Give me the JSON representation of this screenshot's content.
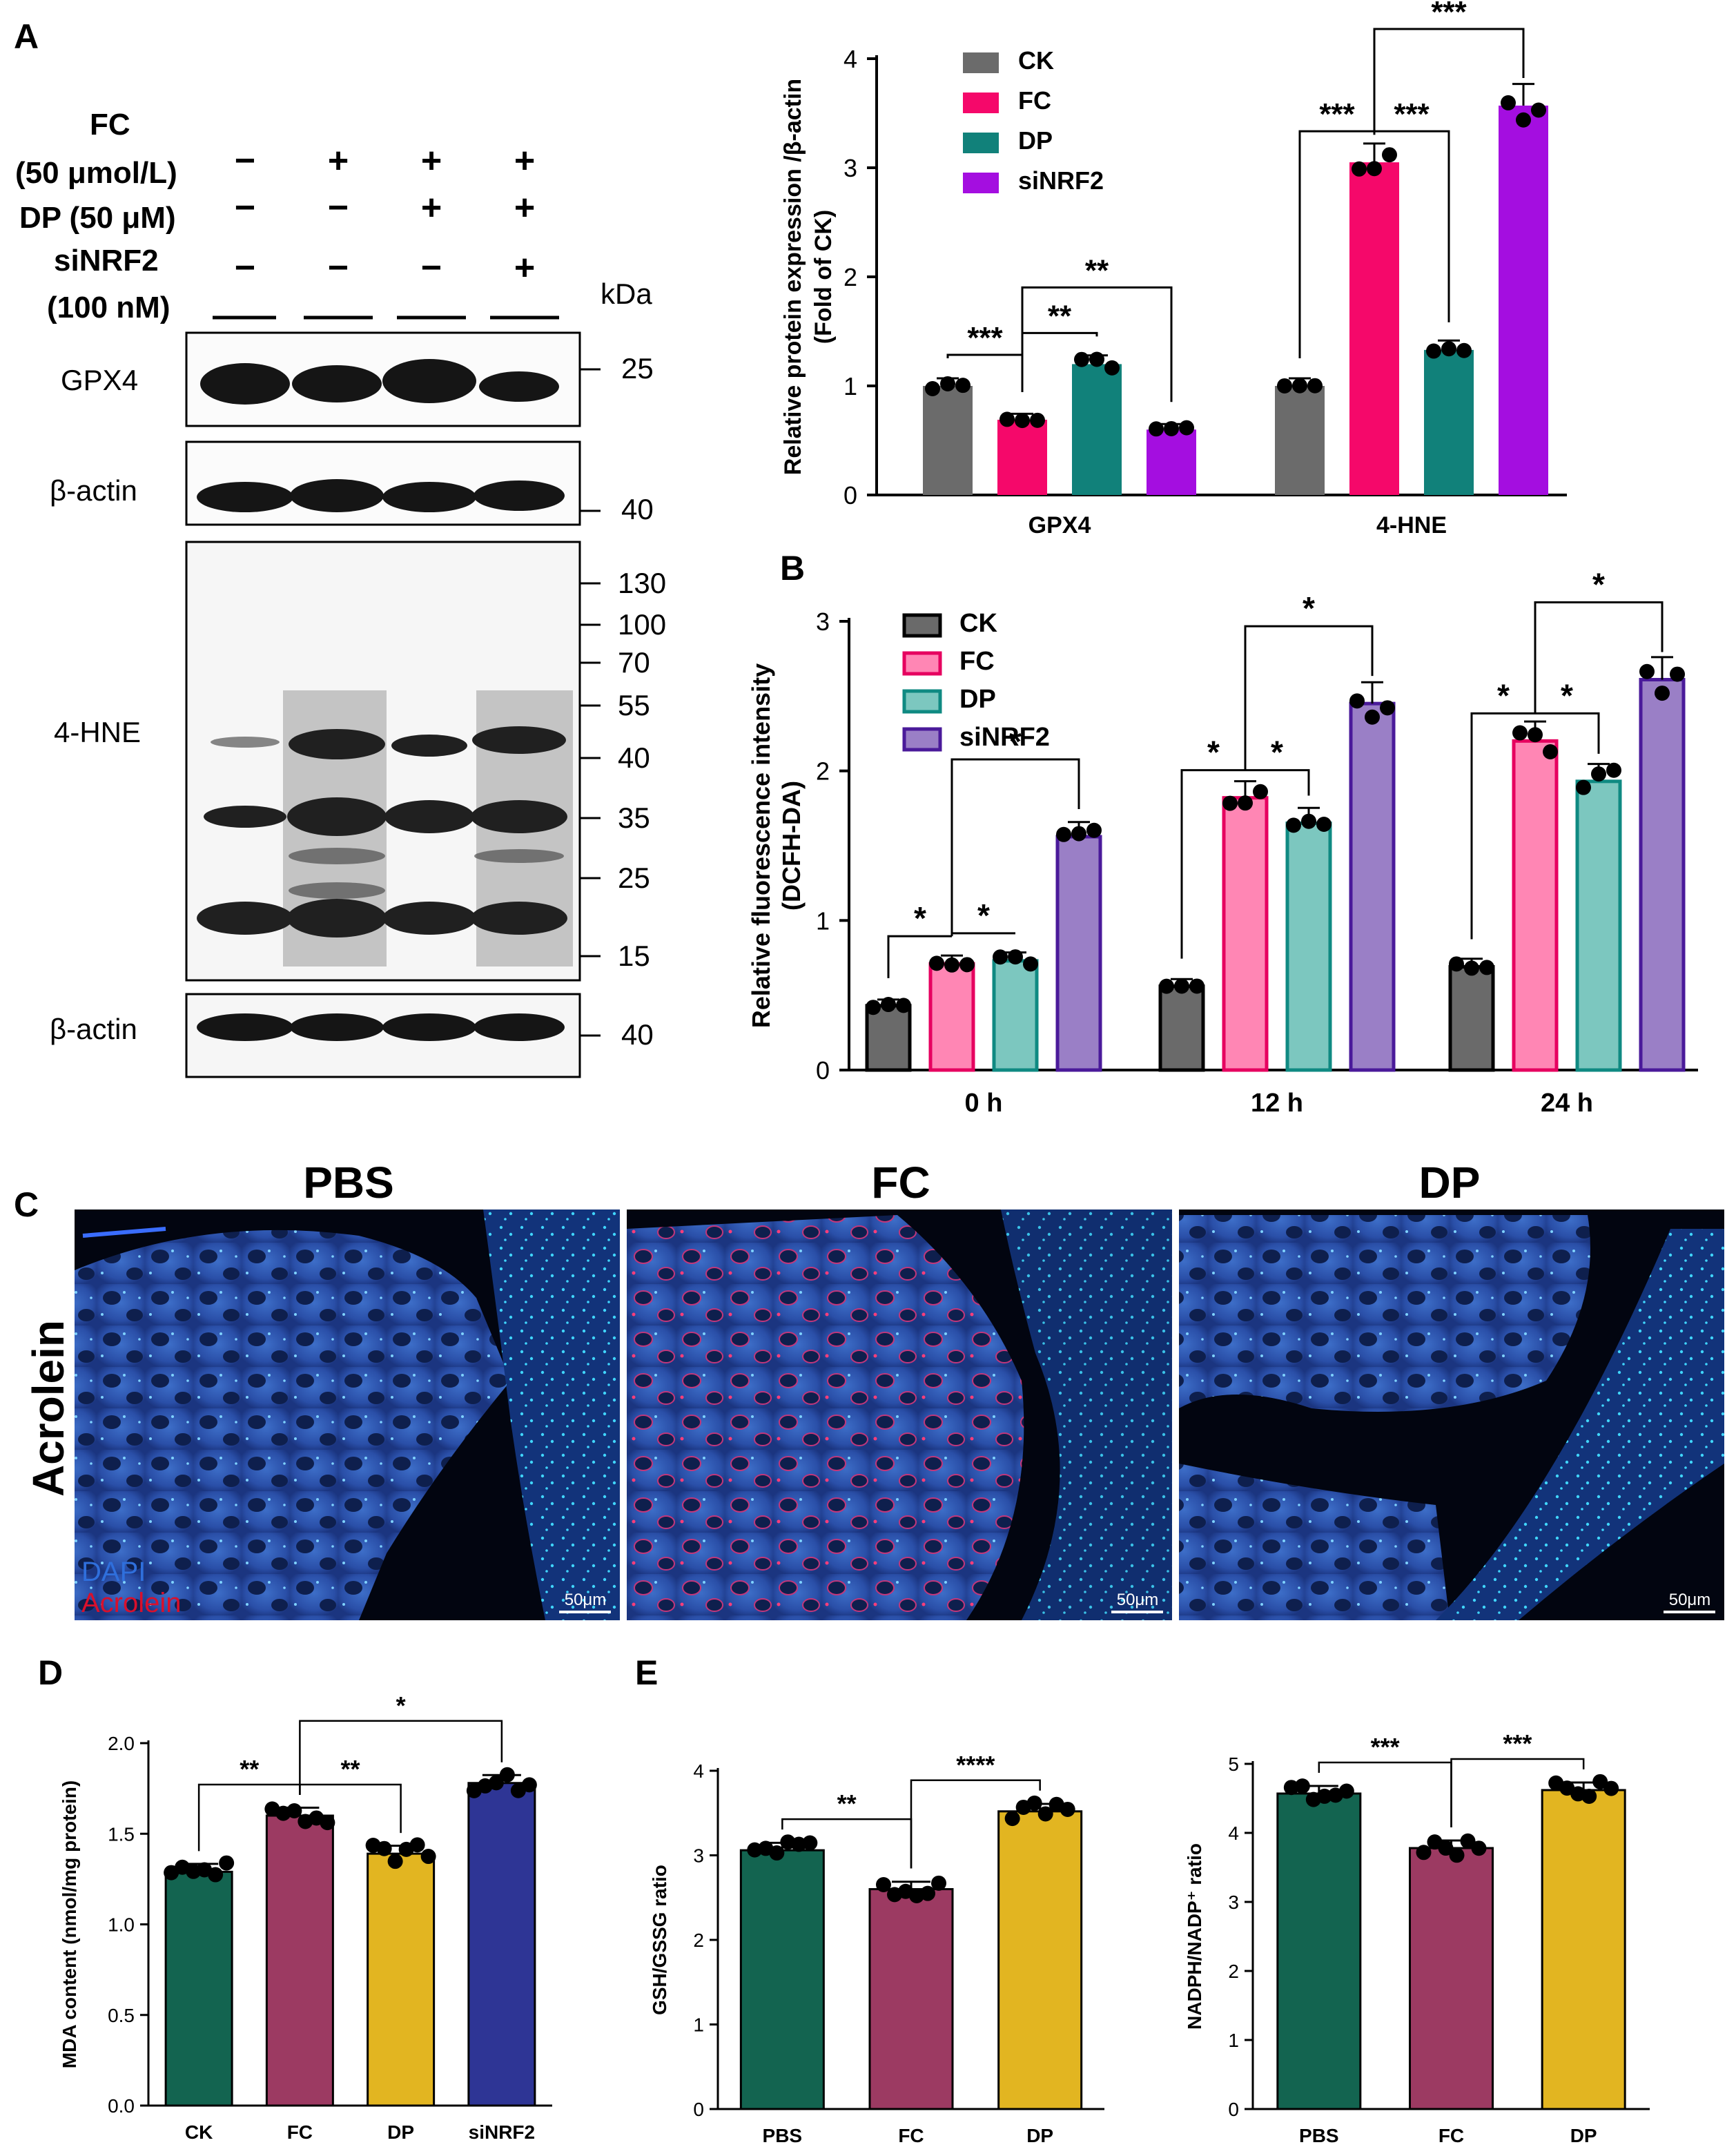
{
  "panels": {
    "A": "A",
    "B": "B",
    "C": "C",
    "D": "D",
    "E": "E"
  },
  "colors": {
    "CK": "#6b6b6b",
    "FC": "#f5086a",
    "DP": "#11817a",
    "siNRF2": "#a40ee0",
    "B_CK_fill": "#6a6a6a",
    "B_FC_fill": "#ff86b4",
    "B_FC_line": "#e6005f",
    "B_DP_fill": "#7cc7bf",
    "B_DP_line": "#0f8a82",
    "B_siNRF2_fill": "#9a7fc6",
    "B_siNRF2_line": "#4a1a9a",
    "D_green": "#136450",
    "D_maroon": "#9c3a62",
    "D_yellow": "#e2b521",
    "D_blue": "#2e3595"
  },
  "western": {
    "treatments": [
      {
        "label": "FC",
        "label2": "(50 μmol/L)",
        "marks": [
          "−",
          "+",
          "+",
          "+"
        ]
      },
      {
        "label": "DP (50 μM)",
        "marks": [
          "−",
          "−",
          "+",
          "+"
        ]
      },
      {
        "label": "siNRF2",
        "label2": "(100 nM)",
        "marks": [
          "−",
          "−",
          "−",
          "+"
        ]
      }
    ],
    "kda_label": "kDa",
    "blots": [
      {
        "name": "GPX4",
        "markers": [
          "25"
        ]
      },
      {
        "name": "β-actin",
        "markers": [
          "40"
        ]
      },
      {
        "name": "4-HNE",
        "markers": [
          "130",
          "100",
          "70",
          "55",
          "40",
          "35",
          "25",
          "15"
        ]
      },
      {
        "name": "β-actin",
        "markers": [
          "40"
        ]
      }
    ]
  },
  "chart_data": [
    {
      "id": "A",
      "type": "bar",
      "ylabel": "Relative protein expression /β-actin",
      "ylabel2": "(Fold of CK)",
      "ylim": [
        0,
        4
      ],
      "yticks": [
        "0",
        "1",
        "2",
        "3",
        "4"
      ],
      "groups": [
        "GPX4",
        "4-HNE"
      ],
      "legend": [
        "CK",
        "FC",
        "DP",
        "siNRF2"
      ],
      "legend_position": "top-left",
      "series": [
        {
          "name": "CK",
          "values": [
            1.0,
            1.0
          ]
        },
        {
          "name": "FC",
          "values": [
            0.69,
            3.05
          ]
        },
        {
          "name": "DP",
          "values": [
            1.2,
            1.33
          ]
        },
        {
          "name": "siNRF2",
          "values": [
            0.6,
            3.57
          ]
        }
      ],
      "significance": [
        {
          "group": 0,
          "from": 0,
          "to": 1,
          "label": "***"
        },
        {
          "group": 0,
          "from": 1,
          "to": 2,
          "label": "**"
        },
        {
          "group": 0,
          "from": 1,
          "to": 3,
          "label": "**"
        },
        {
          "group": 1,
          "from": 0,
          "to": 1,
          "label": "***"
        },
        {
          "group": 1,
          "from": 1,
          "to": 2,
          "label": "***"
        },
        {
          "group": 1,
          "from": 1,
          "to": 3,
          "label": "***"
        }
      ]
    },
    {
      "id": "B",
      "type": "bar",
      "ylabel": "Relative fluorescence intensity",
      "ylabel2": "(DCFH-DA)",
      "ylim": [
        0,
        3
      ],
      "yticks": [
        "0",
        "1",
        "2",
        "3"
      ],
      "groups": [
        "0 h",
        "12 h",
        "24 h"
      ],
      "legend": [
        "CK",
        "FC",
        "DP",
        "siNRF2"
      ],
      "legend_position": "top-left",
      "series": [
        {
          "name": "CK",
          "values": [
            0.43,
            0.56,
            0.69
          ]
        },
        {
          "name": "FC",
          "values": [
            0.71,
            1.82,
            2.2
          ]
        },
        {
          "name": "DP",
          "values": [
            0.73,
            1.65,
            1.93
          ]
        },
        {
          "name": "siNRF2",
          "values": [
            1.56,
            2.45,
            2.61
          ]
        }
      ],
      "significance": [
        {
          "group": 0,
          "from": 0,
          "to": 1,
          "label": "*"
        },
        {
          "group": 0,
          "from": 1,
          "to": 2,
          "label": "*"
        },
        {
          "group": 0,
          "from": 1,
          "to": 3,
          "label": "*"
        },
        {
          "group": 1,
          "from": 0,
          "to": 1,
          "label": "*"
        },
        {
          "group": 1,
          "from": 1,
          "to": 2,
          "label": "*"
        },
        {
          "group": 1,
          "from": 1,
          "to": 3,
          "label": "*"
        },
        {
          "group": 2,
          "from": 0,
          "to": 1,
          "label": "*"
        },
        {
          "group": 2,
          "from": 1,
          "to": 2,
          "label": "*"
        },
        {
          "group": 2,
          "from": 1,
          "to": 3,
          "label": "*"
        }
      ]
    },
    {
      "id": "D",
      "type": "bar",
      "ylabel": "MDA content (nmol/mg protein)",
      "ylim": [
        0,
        2.0
      ],
      "yticks": [
        "0.0",
        "0.5",
        "1.0",
        "1.5",
        "2.0"
      ],
      "categories": [
        "CK",
        "FC",
        "DP",
        "siNRF2"
      ],
      "values": [
        1.29,
        1.6,
        1.39,
        1.78
      ],
      "significance": [
        {
          "from": 0,
          "to": 1,
          "label": "**"
        },
        {
          "from": 1,
          "to": 2,
          "label": "**"
        },
        {
          "from": 1,
          "to": 3,
          "label": "*"
        }
      ]
    },
    {
      "id": "E1",
      "type": "bar",
      "ylabel": "GSH/GSSG ratio",
      "ylim": [
        0,
        4
      ],
      "yticks": [
        "0",
        "1",
        "2",
        "3",
        "4"
      ],
      "categories": [
        "PBS",
        "FC",
        "DP"
      ],
      "values": [
        3.06,
        2.6,
        3.52
      ],
      "significance": [
        {
          "from": 0,
          "to": 1,
          "label": "**"
        },
        {
          "from": 1,
          "to": 2,
          "label": "****"
        }
      ]
    },
    {
      "id": "E2",
      "type": "bar",
      "ylabel": "NADPH/NADP⁺ ratio",
      "ylim": [
        0,
        5
      ],
      "yticks": [
        "0",
        "1",
        "2",
        "3",
        "4",
        "5"
      ],
      "categories": [
        "PBS",
        "FC",
        "DP"
      ],
      "values": [
        4.57,
        3.78,
        4.62
      ],
      "significance": [
        {
          "from": 0,
          "to": 1,
          "label": "***"
        },
        {
          "from": 1,
          "to": 2,
          "label": "***"
        }
      ]
    }
  ],
  "micrographs": {
    "row_label": "Acrolein",
    "titles": [
      "PBS",
      "FC",
      "DP"
    ],
    "legend_dapi": "DAPI",
    "legend_acrolein": "Acrolein",
    "scale_bar": "50μm"
  }
}
